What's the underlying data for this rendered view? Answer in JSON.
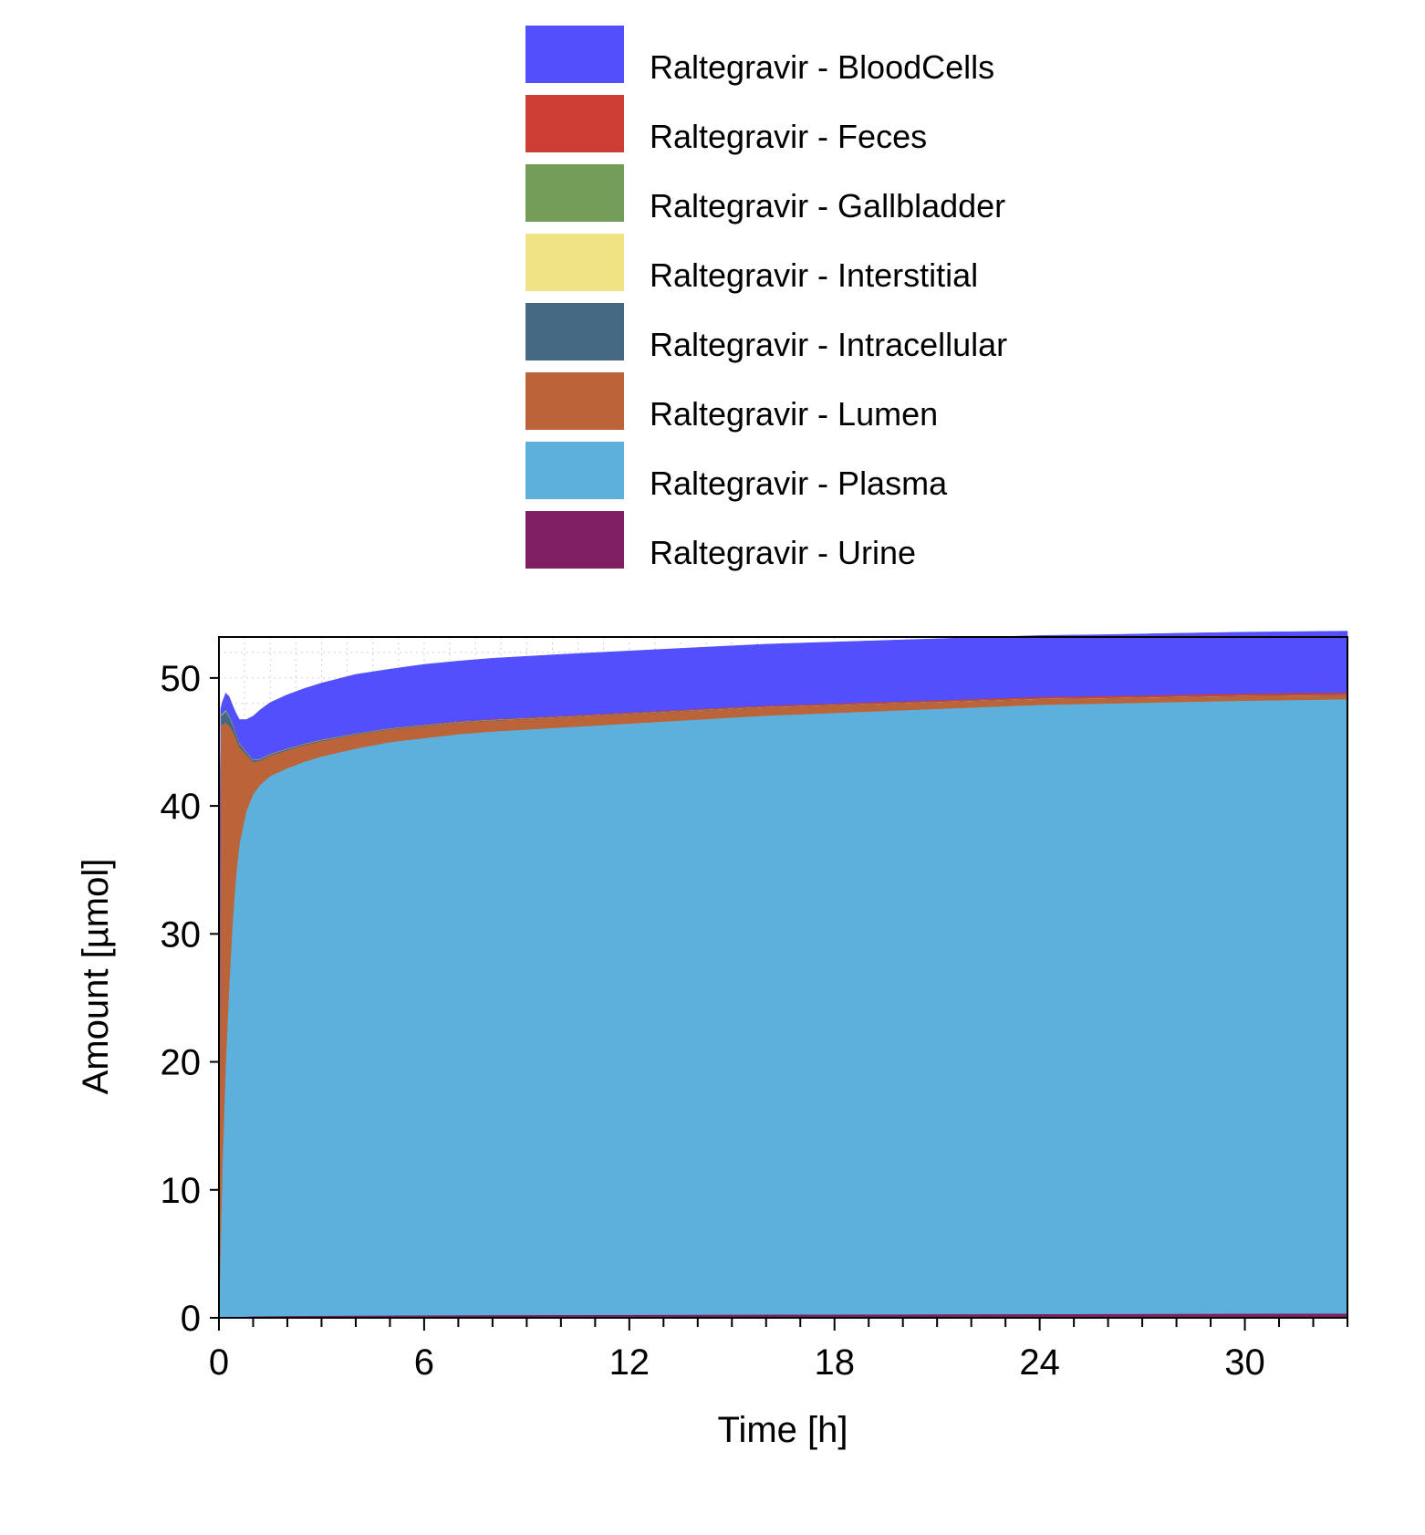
{
  "chart_data": {
    "type": "area",
    "stacked": true,
    "title": "",
    "xlabel": "Time [h]",
    "ylabel": "Amount [µmol]",
    "xlim": [
      0,
      33
    ],
    "ylim": [
      0,
      53.2
    ],
    "xticks": [
      0,
      6,
      12,
      18,
      24,
      30
    ],
    "yticks": [
      0,
      10,
      20,
      30,
      40,
      50
    ],
    "grid": "minor dotted",
    "legend_position": "top",
    "x": [
      0,
      0.05,
      0.1,
      0.2,
      0.3,
      0.4,
      0.5,
      0.6,
      0.8,
      1.0,
      1.2,
      1.5,
      2,
      2.5,
      3,
      4,
      5,
      6,
      7,
      8,
      10,
      12,
      14,
      16,
      18,
      20,
      22,
      24,
      26,
      28,
      30,
      33
    ],
    "series": [
      {
        "name": "Raltegravir - Urine",
        "color": "#7f2062",
        "values": [
          0,
          0.01,
          0.02,
          0.03,
          0.05,
          0.06,
          0.07,
          0.08,
          0.1,
          0.12,
          0.13,
          0.14,
          0.15,
          0.16,
          0.17,
          0.18,
          0.19,
          0.2,
          0.21,
          0.22,
          0.23,
          0.24,
          0.25,
          0.26,
          0.27,
          0.28,
          0.29,
          0.3,
          0.31,
          0.32,
          0.33,
          0.34
        ]
      },
      {
        "name": "Raltegravir - Plasma",
        "color": "#5eb0dc",
        "values": [
          0,
          6,
          12,
          20,
          26,
          31,
          34.5,
          37,
          39.5,
          40.8,
          41.5,
          42.2,
          42.8,
          43.3,
          43.7,
          44.3,
          44.8,
          45.1,
          45.4,
          45.6,
          45.9,
          46.2,
          46.5,
          46.8,
          47.0,
          47.2,
          47.4,
          47.6,
          47.7,
          47.8,
          47.9,
          48.0
        ]
      },
      {
        "name": "Raltegravir - Lumen",
        "color": "#bb6439",
        "values": [
          0,
          40.5,
          34.3,
          26.5,
          20.2,
          14.8,
          10.7,
          7.5,
          4.4,
          2.5,
          1.9,
          1.6,
          1.4,
          1.3,
          1.2,
          1.1,
          1.0,
          0.95,
          0.9,
          0.85,
          0.8,
          0.75,
          0.7,
          0.65,
          0.6,
          0.55,
          0.5,
          0.45,
          0.4,
          0.38,
          0.35,
          0.3
        ]
      },
      {
        "name": "Raltegravir - Intracellular",
        "color": "#456882",
        "values": [
          0,
          0.6,
          0.8,
          0.9,
          0.7,
          0.5,
          0.4,
          0.3,
          0.2,
          0.15,
          0.12,
          0.1,
          0.1,
          0.08,
          0.08,
          0.06,
          0.05,
          0.05,
          0.04,
          0.04,
          0.03,
          0.03,
          0.03,
          0.02,
          0.02,
          0.02,
          0.02,
          0.02,
          0.02,
          0.02,
          0.02,
          0.02
        ]
      },
      {
        "name": "Raltegravir - Interstitial",
        "color": "#f0e386",
        "values": [
          0,
          0.05,
          0.05,
          0.05,
          0.04,
          0.04,
          0.03,
          0.03,
          0.02,
          0.02,
          0.02,
          0.02,
          0.02,
          0.02,
          0.02,
          0.01,
          0.01,
          0.01,
          0.01,
          0.01,
          0.01,
          0.01,
          0.01,
          0.01,
          0.01,
          0.01,
          0.01,
          0.01,
          0.01,
          0.01,
          0.01,
          0.01
        ]
      },
      {
        "name": "Raltegravir - Gallbladder",
        "color": "#759d5a",
        "values": [
          0,
          0.05,
          0.05,
          0.05,
          0.05,
          0.05,
          0.04,
          0.04,
          0.03,
          0.03,
          0.03,
          0.02,
          0.02,
          0.02,
          0.02,
          0.02,
          0.02,
          0.02,
          0.02,
          0.02,
          0.01,
          0.01,
          0.01,
          0.01,
          0.01,
          0.01,
          0.01,
          0.01,
          0.01,
          0.01,
          0.01,
          0.01
        ]
      },
      {
        "name": "Raltegravir - Feces",
        "color": "#cd3e34",
        "values": [
          0,
          0,
          0,
          0,
          0,
          0,
          0,
          0,
          0,
          0,
          0,
          0,
          0,
          0,
          0.01,
          0.01,
          0.02,
          0.03,
          0.04,
          0.05,
          0.06,
          0.07,
          0.08,
          0.09,
          0.1,
          0.11,
          0.12,
          0.13,
          0.14,
          0.15,
          0.16,
          0.18
        ]
      },
      {
        "name": "Raltegravir - BloodCells",
        "color": "#524ffc",
        "values": [
          0,
          0.4,
          0.9,
          1.3,
          1.5,
          1.4,
          1.5,
          1.8,
          2.5,
          3.4,
          3.8,
          4.0,
          4.2,
          4.3,
          4.4,
          4.6,
          4.6,
          4.7,
          4.7,
          4.75,
          4.8,
          4.8,
          4.8,
          4.8,
          4.8,
          4.8,
          4.8,
          4.8,
          4.8,
          4.8,
          4.8,
          4.8
        ]
      }
    ],
    "legend": [
      {
        "label": "Raltegravir - BloodCells",
        "color": "#524ffc"
      },
      {
        "label": "Raltegravir - Feces",
        "color": "#cd3e34"
      },
      {
        "label": "Raltegravir - Gallbladder",
        "color": "#759d5a"
      },
      {
        "label": "Raltegravir - Interstitial",
        "color": "#f0e386"
      },
      {
        "label": "Raltegravir - Intracellular",
        "color": "#456882"
      },
      {
        "label": "Raltegravir - Lumen",
        "color": "#bb6439"
      },
      {
        "label": "Raltegravir - Plasma",
        "color": "#5eb0dc"
      },
      {
        "label": "Raltegravir - Urine",
        "color": "#7f2062"
      }
    ]
  }
}
